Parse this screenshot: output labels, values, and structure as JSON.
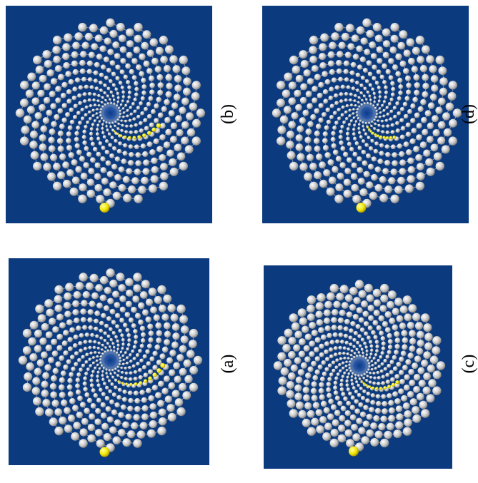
{
  "panels": [
    {
      "label": "(b)"
    },
    {
      "label": "(d)"
    },
    {
      "label": "(a)"
    },
    {
      "label": "(c)"
    }
  ]
}
